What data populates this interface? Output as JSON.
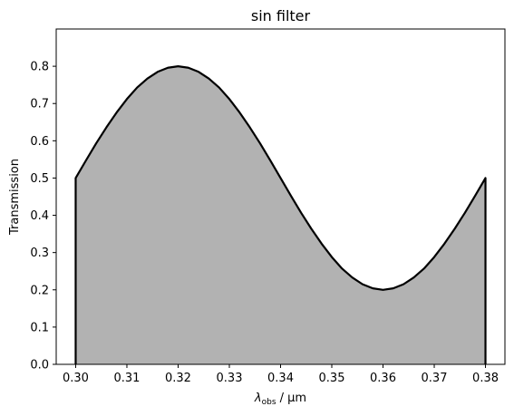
{
  "chart_data": {
    "type": "area",
    "title": "sin filter",
    "xlabel": {
      "symbol": "λ",
      "subscript": "obs",
      "unit": " / μm"
    },
    "ylabel": "Transmission",
    "xlim": [
      0.2962,
      0.3838
    ],
    "ylim": [
      0.0,
      0.9
    ],
    "xticks": [
      0.3,
      0.31,
      0.32,
      0.33,
      0.34,
      0.35,
      0.36,
      0.37,
      0.38
    ],
    "xtick_labels": [
      "0.30",
      "0.31",
      "0.32",
      "0.33",
      "0.34",
      "0.35",
      "0.36",
      "0.37",
      "0.38"
    ],
    "yticks": [
      0.0,
      0.1,
      0.2,
      0.3,
      0.4,
      0.5,
      0.6,
      0.7,
      0.8
    ],
    "ytick_labels": [
      "0.0",
      "0.1",
      "0.2",
      "0.3",
      "0.4",
      "0.5",
      "0.6",
      "0.7",
      "0.8"
    ],
    "grid": false,
    "fill_color": "#b2b2b2",
    "line_color": "#000000",
    "series": [
      {
        "x": [
          0.3,
          0.302,
          0.304,
          0.306,
          0.308,
          0.31,
          0.312,
          0.314,
          0.316,
          0.318,
          0.32,
          0.322,
          0.324,
          0.326,
          0.328,
          0.33,
          0.332,
          0.334,
          0.336,
          0.338,
          0.34,
          0.342,
          0.344,
          0.346,
          0.348,
          0.35,
          0.352,
          0.354,
          0.356,
          0.358,
          0.36,
          0.362,
          0.364,
          0.366,
          0.368,
          0.37,
          0.372,
          0.374,
          0.376,
          0.378,
          0.38
        ],
        "y": [
          0.5,
          0.547,
          0.593,
          0.636,
          0.676,
          0.712,
          0.743,
          0.767,
          0.785,
          0.796,
          0.8,
          0.796,
          0.785,
          0.767,
          0.743,
          0.712,
          0.676,
          0.636,
          0.593,
          0.547,
          0.5,
          0.453,
          0.407,
          0.364,
          0.324,
          0.288,
          0.257,
          0.233,
          0.215,
          0.204,
          0.2,
          0.204,
          0.215,
          0.233,
          0.257,
          0.288,
          0.324,
          0.364,
          0.407,
          0.453,
          0.5
        ]
      }
    ]
  }
}
